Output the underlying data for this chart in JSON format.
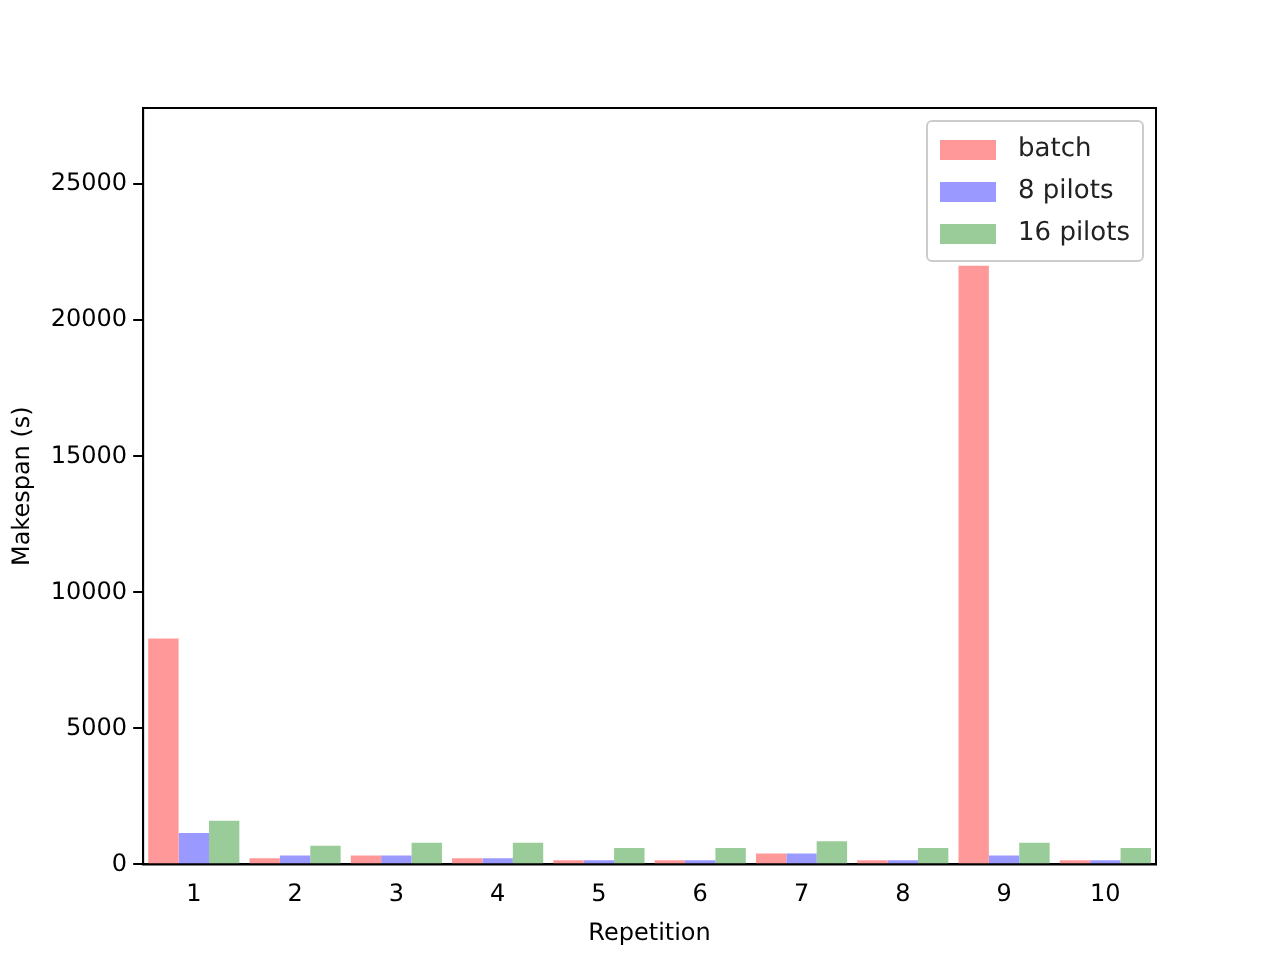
{
  "chart_data": {
    "type": "bar",
    "xlabel": "Repetition",
    "ylabel": "Makespan (s)",
    "categories": [
      "1",
      "2",
      "3",
      "4",
      "5",
      "6",
      "7",
      "8",
      "9",
      "10"
    ],
    "series": [
      {
        "name": "batch",
        "color": "#ff9999",
        "values": [
          8300,
          230,
          330,
          230,
          150,
          150,
          400,
          150,
          22000,
          150
        ]
      },
      {
        "name": "8 pilots",
        "color": "#9999ff",
        "values": [
          1150,
          330,
          330,
          230,
          150,
          150,
          400,
          150,
          330,
          150
        ]
      },
      {
        "name": "16 pilots",
        "color": "#99cc99",
        "values": [
          1600,
          690,
          800,
          800,
          600,
          600,
          850,
          600,
          800,
          600
        ]
      }
    ],
    "ylim": [
      0,
      27800
    ],
    "yticks": [
      0,
      5000,
      10000,
      15000,
      20000,
      25000
    ],
    "grid": false,
    "legend": "top right"
  }
}
